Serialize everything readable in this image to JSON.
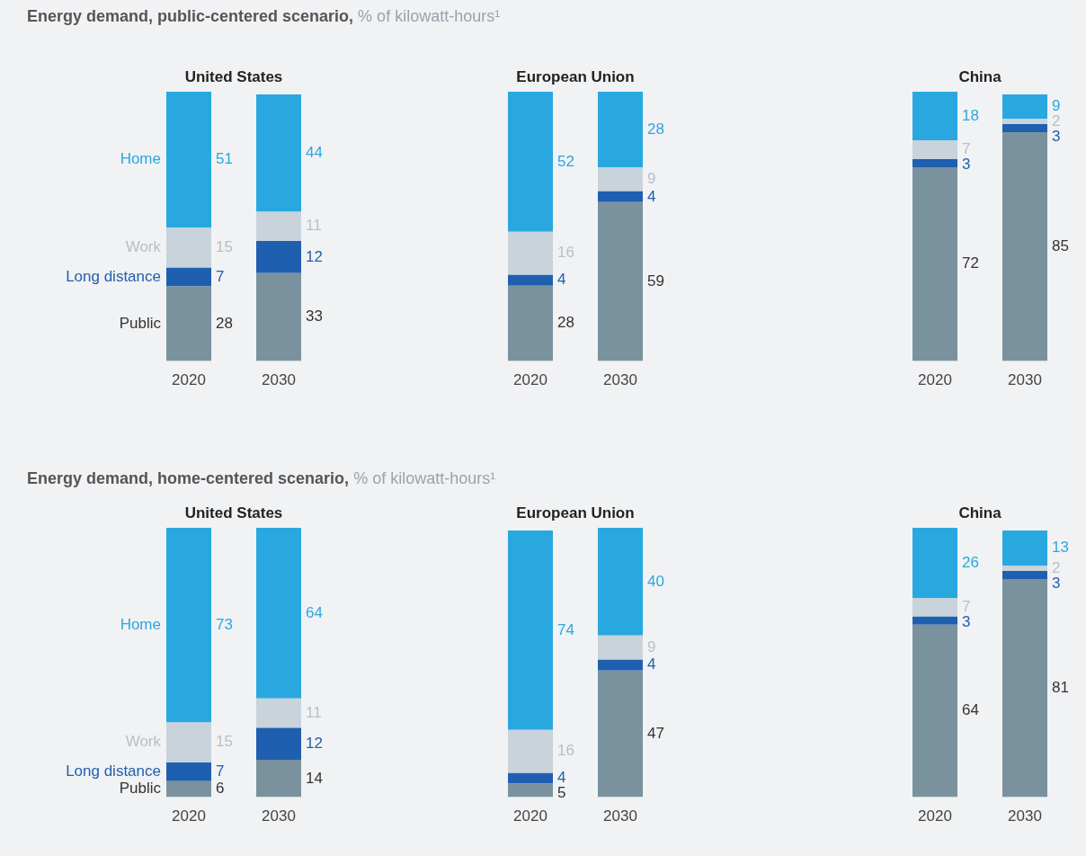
{
  "chart_data": [
    {
      "type": "bar",
      "stacked": true,
      "data_labels": true,
      "legend": "left",
      "title": "United States",
      "annotations": [
        "Energy demand, public-centered scenario, % of kilowatt-hours¹"
      ],
      "categories": [
        "2020",
        "2030"
      ],
      "series": [
        {
          "name": "Public",
          "color": "#7a929e",
          "values": [
            28,
            33
          ]
        },
        {
          "name": "Long distance",
          "color": "#1f5fb0",
          "values": [
            7,
            12
          ]
        },
        {
          "name": "Work",
          "color": "#c8d3db",
          "values": [
            15,
            11
          ]
        },
        {
          "name": "Home",
          "color": "#29a8e0",
          "values": [
            51,
            44
          ]
        }
      ]
    },
    {
      "type": "bar",
      "stacked": true,
      "data_labels": true,
      "title": "European Union",
      "categories": [
        "2020",
        "2030"
      ],
      "series": [
        {
          "color": "#7a929e",
          "values": [
            28,
            59
          ]
        },
        {
          "color": "#1f5fb0",
          "values": [
            4,
            4
          ]
        },
        {
          "color": "#c8d3db",
          "values": [
            16,
            9
          ]
        },
        {
          "color": "#29a8e0",
          "values": [
            52,
            28
          ]
        }
      ]
    },
    {
      "type": "bar",
      "stacked": true,
      "data_labels": true,
      "title": "China",
      "categories": [
        "2020",
        "2030"
      ],
      "series": [
        {
          "color": "#7a929e",
          "values": [
            72,
            85
          ]
        },
        {
          "color": "#1f5fb0",
          "values": [
            3,
            3
          ]
        },
        {
          "color": "#c8d3db",
          "values": [
            7,
            2
          ]
        },
        {
          "color": "#29a8e0",
          "values": [
            18,
            9
          ]
        }
      ]
    },
    {
      "type": "bar",
      "stacked": true,
      "data_labels": true,
      "legend": "left",
      "title": "United States",
      "annotations": [
        "Energy demand, home-centered scenario, % of kilowatt-hours¹"
      ],
      "categories": [
        "2020",
        "2030"
      ],
      "series": [
        {
          "name": "Public",
          "color": "#7a929e",
          "values": [
            6,
            14
          ]
        },
        {
          "name": "Long distance",
          "color": "#1f5fb0",
          "values": [
            7,
            12
          ]
        },
        {
          "name": "Work",
          "color": "#c8d3db",
          "values": [
            15,
            11
          ]
        },
        {
          "name": "Home",
          "color": "#29a8e0",
          "values": [
            73,
            64
          ]
        }
      ]
    },
    {
      "type": "bar",
      "stacked": true,
      "data_labels": true,
      "title": "European Union",
      "categories": [
        "2020",
        "2030"
      ],
      "series": [
        {
          "color": "#7a929e",
          "values": [
            5,
            47
          ]
        },
        {
          "color": "#1f5fb0",
          "values": [
            4,
            4
          ]
        },
        {
          "color": "#c8d3db",
          "values": [
            16,
            9
          ]
        },
        {
          "color": "#29a8e0",
          "values": [
            74,
            40
          ]
        }
      ]
    },
    {
      "type": "bar",
      "stacked": true,
      "data_labels": true,
      "title": "China",
      "categories": [
        "2020",
        "2030"
      ],
      "series": [
        {
          "color": "#7a929e",
          "values": [
            64,
            81
          ]
        },
        {
          "color": "#1f5fb0",
          "values": [
            3,
            3
          ]
        },
        {
          "color": "#c8d3db",
          "values": [
            7,
            2
          ]
        },
        {
          "color": "#29a8e0",
          "values": [
            26,
            13
          ]
        }
      ]
    }
  ]
}
